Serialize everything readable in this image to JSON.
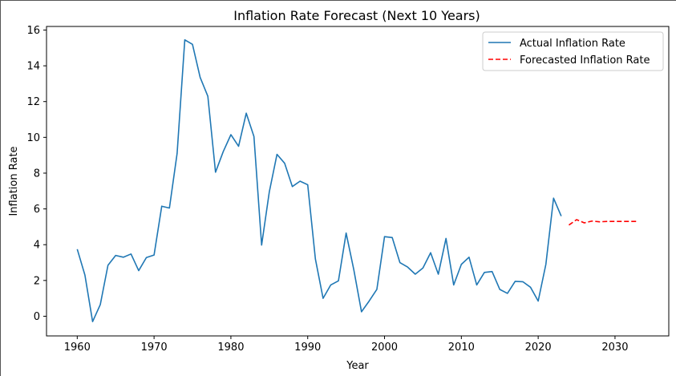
{
  "chart_data": {
    "type": "line",
    "title": "Inflation Rate Forecast (Next 10 Years)",
    "xlabel": "Year",
    "ylabel": "Inflation Rate",
    "xlim": [
      1956,
      2037
    ],
    "ylim": [
      -1.1,
      16.2
    ],
    "xticks": [
      1960,
      1970,
      1980,
      1990,
      2000,
      2010,
      2020,
      2030
    ],
    "yticks": [
      0,
      2,
      4,
      6,
      8,
      10,
      12,
      14,
      16
    ],
    "grid": false,
    "legend_position": "top-right",
    "series": [
      {
        "name": "Actual Inflation Rate",
        "color": "#1f77b4",
        "style": "solid",
        "x": [
          1960,
          1961,
          1962,
          1963,
          1964,
          1965,
          1966,
          1967,
          1968,
          1969,
          1970,
          1971,
          1972,
          1973,
          1974,
          1975,
          1976,
          1977,
          1978,
          1979,
          1980,
          1981,
          1982,
          1983,
          1984,
          1985,
          1986,
          1987,
          1988,
          1989,
          1990,
          1991,
          1992,
          1993,
          1994,
          1995,
          1996,
          1997,
          1998,
          1999,
          2000,
          2001,
          2002,
          2003,
          2004,
          2005,
          2006,
          2007,
          2008,
          2009,
          2010,
          2011,
          2012,
          2013,
          2014,
          2015,
          2016,
          2017,
          2018,
          2019,
          2020,
          2021,
          2022,
          2023
        ],
        "y": [
          3.75,
          2.3,
          -0.3,
          0.65,
          2.85,
          3.4,
          3.3,
          3.48,
          2.55,
          3.28,
          3.42,
          6.15,
          6.05,
          9.1,
          15.45,
          15.2,
          13.35,
          12.3,
          8.05,
          9.2,
          10.15,
          9.5,
          11.35,
          10.05,
          3.98,
          6.95,
          9.05,
          8.55,
          7.25,
          7.55,
          7.35,
          3.2,
          1.0,
          1.75,
          1.98,
          4.65,
          2.6,
          0.25,
          0.85,
          1.5,
          4.45,
          4.4,
          3.0,
          2.75,
          2.35,
          2.7,
          3.55,
          2.35,
          4.35,
          1.75,
          2.9,
          3.3,
          1.75,
          2.45,
          2.5,
          1.5,
          1.28,
          1.95,
          1.93,
          1.62,
          0.85,
          2.9,
          6.6,
          5.6
        ]
      },
      {
        "name": "Forecasted Inflation Rate",
        "color": "#ff0000",
        "style": "dashed",
        "x": [
          2024,
          2025,
          2026,
          2027,
          2028,
          2029,
          2030,
          2031,
          2032,
          2033
        ],
        "y": [
          5.1,
          5.4,
          5.22,
          5.32,
          5.28,
          5.3,
          5.3,
          5.3,
          5.3,
          5.3
        ]
      }
    ]
  }
}
